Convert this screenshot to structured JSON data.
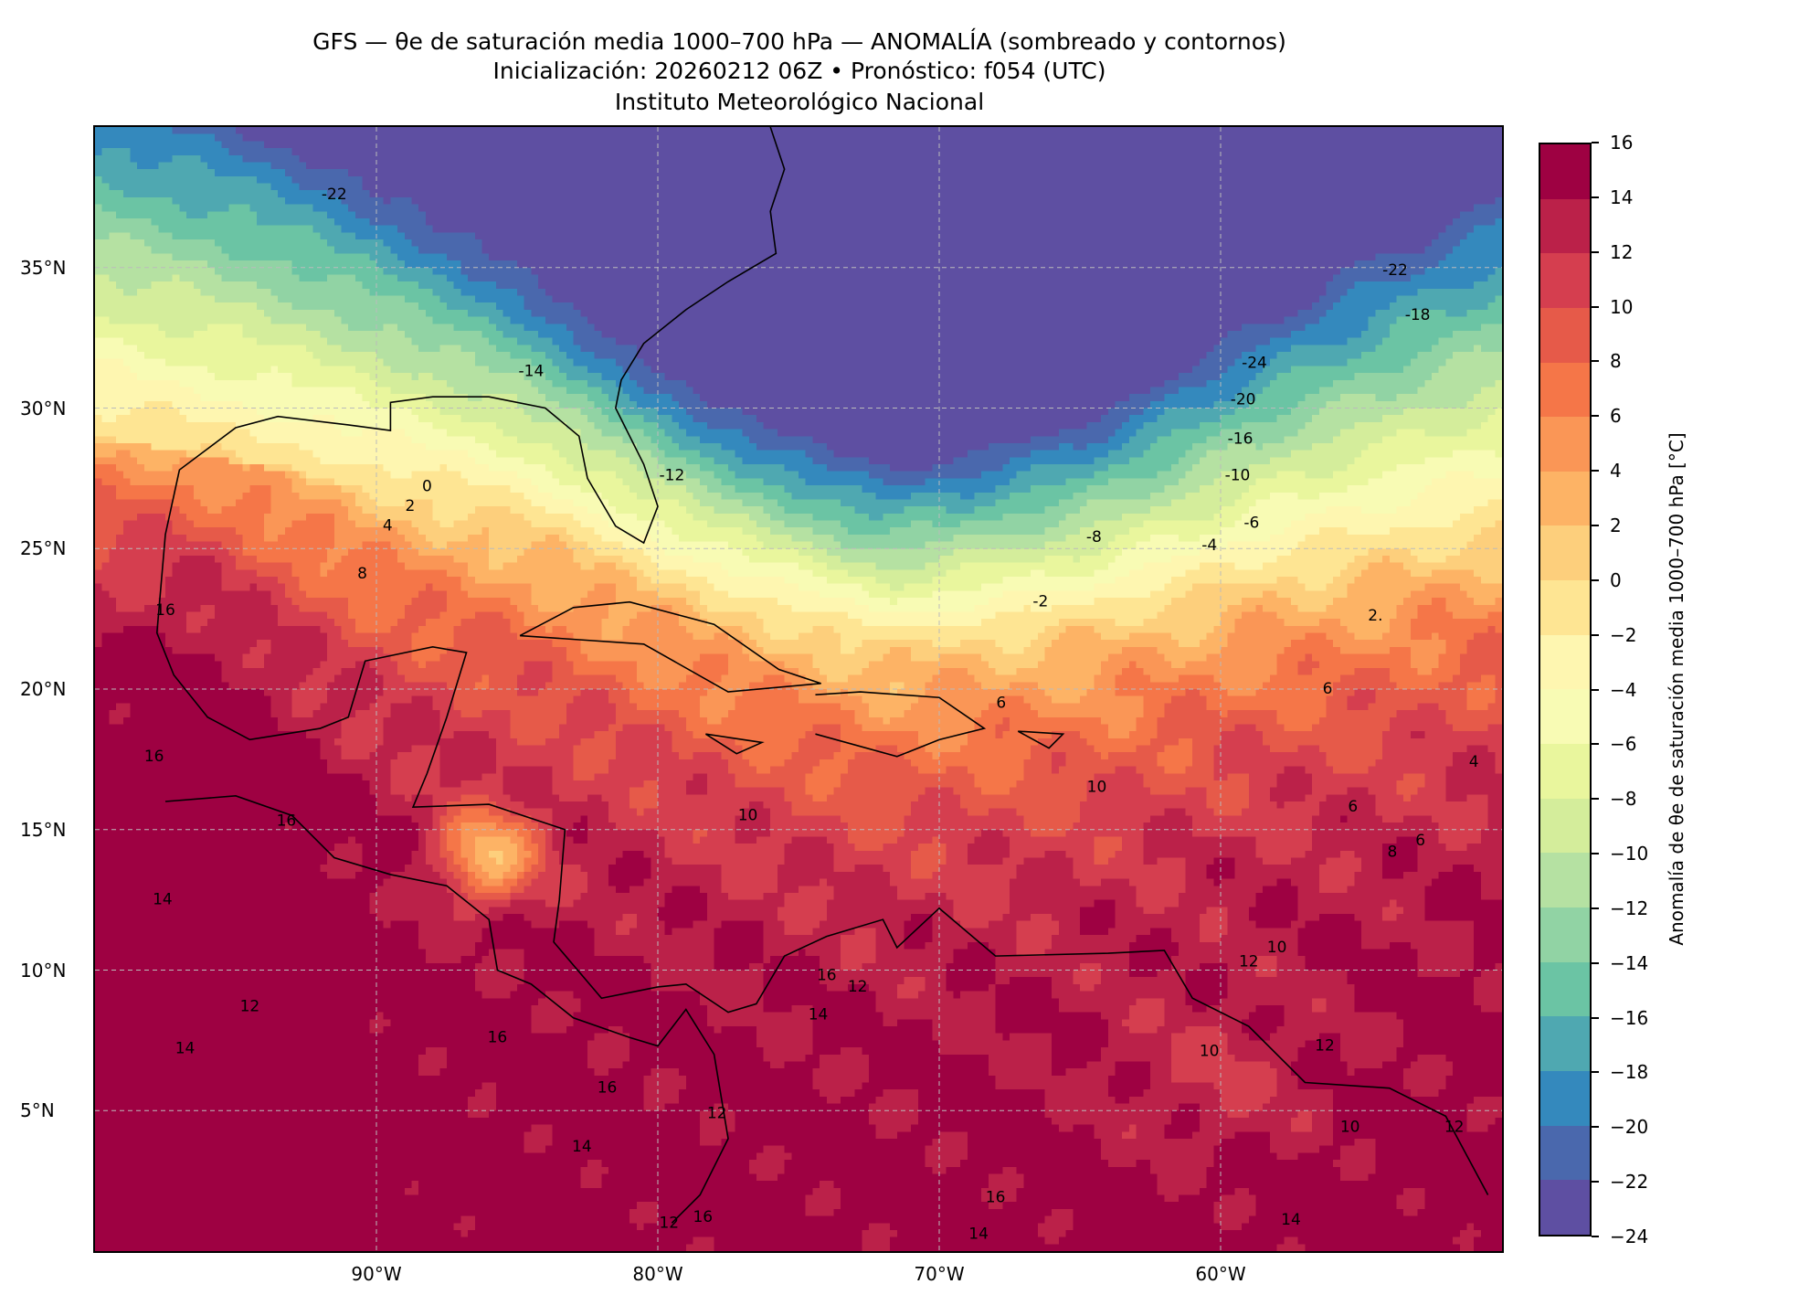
{
  "title": {
    "line1": "GFS — θe de saturación media 1000–700 hPa — ANOMALÍA (sombreado y contornos)",
    "line2": "Inicialización: 20260212 06Z   •   Pronóstico: f054 (UTC)",
    "line3": "Instituto Meteorológico Nacional"
  },
  "chart_data": {
    "type": "heatmap",
    "title": "GFS — θe de saturación media 1000–700 hPa — ANOMALÍA (sombreado y contornos)",
    "lon_range": [
      -100,
      -50
    ],
    "lat_range": [
      0,
      40
    ],
    "grid": true,
    "x_ticks": [
      {
        "value": -90,
        "label": "90°W"
      },
      {
        "value": -80,
        "label": "80°W"
      },
      {
        "value": -70,
        "label": "70°W"
      },
      {
        "value": -60,
        "label": "60°W"
      }
    ],
    "y_ticks": [
      {
        "value": 35,
        "label": "35°N"
      },
      {
        "value": 30,
        "label": "30°N"
      },
      {
        "value": 25,
        "label": "25°N"
      },
      {
        "value": 20,
        "label": "20°N"
      },
      {
        "value": 15,
        "label": "15°N"
      },
      {
        "value": 10,
        "label": "10°N"
      },
      {
        "value": 5,
        "label": "5°N"
      }
    ],
    "contour_labels": [
      {
        "text": "-22",
        "lon": -91.5,
        "lat": 37.6
      },
      {
        "text": "-14",
        "lon": -84.5,
        "lat": 31.3
      },
      {
        "text": "-12",
        "lon": -79.5,
        "lat": 27.6
      },
      {
        "text": "0",
        "lon": -88.2,
        "lat": 27.2
      },
      {
        "text": "2",
        "lon": -88.8,
        "lat": 26.5
      },
      {
        "text": "4",
        "lon": -89.6,
        "lat": 25.8
      },
      {
        "text": "8",
        "lon": -90.5,
        "lat": 24.1
      },
      {
        "text": "16",
        "lon": -97.5,
        "lat": 22.8
      },
      {
        "text": "16",
        "lon": -97.9,
        "lat": 17.6
      },
      {
        "text": "16",
        "lon": -93.2,
        "lat": 15.3
      },
      {
        "text": "14",
        "lon": -97.6,
        "lat": 12.5
      },
      {
        "text": "12",
        "lon": -94.5,
        "lat": 8.7
      },
      {
        "text": "14",
        "lon": -96.8,
        "lat": 7.2
      },
      {
        "text": "16",
        "lon": -85.7,
        "lat": 7.6
      },
      {
        "text": "16",
        "lon": -81.8,
        "lat": 5.8
      },
      {
        "text": "14",
        "lon": -82.7,
        "lat": 3.7
      },
      {
        "text": "10",
        "lon": -76.8,
        "lat": 15.5
      },
      {
        "text": "6",
        "lon": -67.8,
        "lat": 19.5
      },
      {
        "text": "10",
        "lon": -64.4,
        "lat": 16.5
      },
      {
        "text": "16",
        "lon": -74.0,
        "lat": 9.8
      },
      {
        "text": "14",
        "lon": -74.3,
        "lat": 8.4
      },
      {
        "text": "12",
        "lon": -72.9,
        "lat": 9.4
      },
      {
        "text": "12",
        "lon": -77.9,
        "lat": 4.9
      },
      {
        "text": "12",
        "lon": -79.6,
        "lat": 1.0
      },
      {
        "text": "16",
        "lon": -78.4,
        "lat": 1.2
      },
      {
        "text": "16",
        "lon": -68.0,
        "lat": 1.9
      },
      {
        "text": "14",
        "lon": -68.6,
        "lat": 0.6
      },
      {
        "text": "10",
        "lon": -60.4,
        "lat": 7.1
      },
      {
        "text": "12",
        "lon": -59.0,
        "lat": 10.3
      },
      {
        "text": "10",
        "lon": -58.0,
        "lat": 10.8
      },
      {
        "text": "12",
        "lon": -56.3,
        "lat": 7.3
      },
      {
        "text": "10",
        "lon": -55.4,
        "lat": 4.4
      },
      {
        "text": "14",
        "lon": -57.5,
        "lat": 1.1
      },
      {
        "text": "12",
        "lon": -51.7,
        "lat": 4.4
      },
      {
        "text": "8",
        "lon": -53.9,
        "lat": 14.2
      },
      {
        "text": "6",
        "lon": -52.9,
        "lat": 14.6
      },
      {
        "text": "6",
        "lon": -55.3,
        "lat": 15.8
      },
      {
        "text": "4",
        "lon": -51.0,
        "lat": 17.4
      },
      {
        "text": "6",
        "lon": -56.2,
        "lat": 20.0
      },
      {
        "text": "2.",
        "lon": -54.5,
        "lat": 22.6
      },
      {
        "text": "-2",
        "lon": -66.4,
        "lat": 23.1
      },
      {
        "text": "-4",
        "lon": -60.4,
        "lat": 25.1
      },
      {
        "text": "-6",
        "lon": -58.9,
        "lat": 25.9
      },
      {
        "text": "-8",
        "lon": -64.5,
        "lat": 25.4
      },
      {
        "text": "-10",
        "lon": -59.4,
        "lat": 27.6
      },
      {
        "text": "-16",
        "lon": -59.3,
        "lat": 28.9
      },
      {
        "text": "-20",
        "lon": -59.2,
        "lat": 30.3
      },
      {
        "text": "-24",
        "lon": -58.8,
        "lat": 31.6
      },
      {
        "text": "-18",
        "lon": -53.0,
        "lat": 33.3
      },
      {
        "text": "-22",
        "lon": -53.8,
        "lat": 34.9
      }
    ]
  },
  "colorbar": {
    "label": "Anomalía de θe de saturación media 1000–700 hPa [°C]",
    "levels": [
      -24,
      -22,
      -20,
      -18,
      -16,
      -14,
      -12,
      -10,
      -8,
      -6,
      -4,
      -2,
      0,
      2,
      4,
      6,
      8,
      10,
      12,
      14,
      16
    ],
    "tick_labels": [
      "−24",
      "−22",
      "−20",
      "−18",
      "−16",
      "−14",
      "−12",
      "−10",
      "−8",
      "−6",
      "−4",
      "−2",
      "0",
      "2",
      "4",
      "6",
      "8",
      "10",
      "12",
      "14",
      "16"
    ],
    "colors": [
      "#5e4fa2",
      "#4a68ad",
      "#3489bd",
      "#4fa8b1",
      "#6bc4a4",
      "#91d3a4",
      "#b5e1a2",
      "#d4ed9b",
      "#e9f69d",
      "#f8fbb4",
      "#fef6b0",
      "#fee593",
      "#fdcf7c",
      "#fdb365",
      "#fa9656",
      "#f57648",
      "#e65a49",
      "#d53e4f",
      "#bb2149",
      "#9e0142"
    ]
  }
}
